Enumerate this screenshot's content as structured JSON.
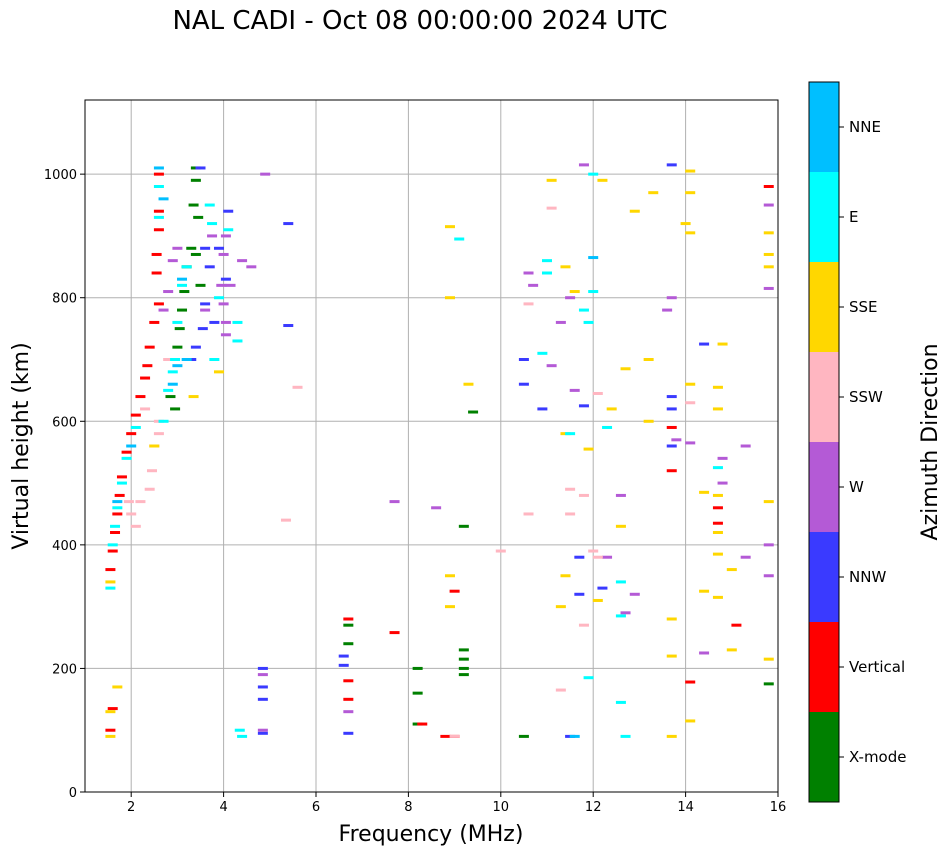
{
  "chart_data": {
    "type": "scatter",
    "title": "NAL CADI - Oct 08 00:00:00 2024 UTC",
    "xlabel": "Frequency (MHz)",
    "ylabel": "Virtual height (km)",
    "xlim": [
      1,
      16
    ],
    "ylim": [
      0,
      1120
    ],
    "xticks": [
      2,
      4,
      6,
      8,
      10,
      12,
      14,
      16
    ],
    "yticks": [
      0,
      200,
      400,
      600,
      800,
      1000
    ],
    "grid": true,
    "colorbar": {
      "label": "Azimuth Direction",
      "categories": [
        "X-mode",
        "Vertical",
        "NNW",
        "W",
        "SSW",
        "SSE",
        "E",
        "NNE"
      ],
      "colors": [
        "#008000",
        "#ff0000",
        "#3a3aff",
        "#b45ad6",
        "#ffb6c1",
        "#ffd700",
        "#00ffff",
        "#00bfff"
      ]
    },
    "series": [
      {
        "category": "X-mode",
        "points": [
          [
            3.4,
            1010
          ],
          [
            3.4,
            990
          ],
          [
            3.35,
            950
          ],
          [
            3.45,
            930
          ],
          [
            3.3,
            880
          ],
          [
            3.2,
            850
          ],
          [
            3.15,
            810
          ],
          [
            3.1,
            780
          ],
          [
            3.05,
            750
          ],
          [
            3.0,
            720
          ],
          [
            2.9,
            700
          ],
          [
            2.85,
            640
          ],
          [
            2.95,
            620
          ],
          [
            3.5,
            820
          ],
          [
            3.4,
            870
          ],
          [
            6.7,
            240
          ],
          [
            6.7,
            270
          ],
          [
            8.2,
            200
          ],
          [
            8.2,
            160
          ],
          [
            8.2,
            110
          ],
          [
            9.2,
            430
          ],
          [
            9.2,
            230
          ],
          [
            9.2,
            215
          ],
          [
            9.2,
            200
          ],
          [
            9.2,
            190
          ],
          [
            9.4,
            615
          ],
          [
            10.5,
            90
          ],
          [
            15.8,
            175
          ]
        ]
      },
      {
        "category": "Vertical",
        "points": [
          [
            2.6,
            1000
          ],
          [
            2.6,
            940
          ],
          [
            2.6,
            910
          ],
          [
            2.55,
            870
          ],
          [
            2.55,
            840
          ],
          [
            2.6,
            790
          ],
          [
            2.5,
            760
          ],
          [
            2.4,
            720
          ],
          [
            2.35,
            690
          ],
          [
            2.3,
            670
          ],
          [
            2.2,
            640
          ],
          [
            2.1,
            610
          ],
          [
            2.0,
            580
          ],
          [
            1.9,
            550
          ],
          [
            1.8,
            510
          ],
          [
            1.75,
            480
          ],
          [
            1.7,
            450
          ],
          [
            1.65,
            420
          ],
          [
            1.6,
            390
          ],
          [
            1.55,
            360
          ],
          [
            1.55,
            100
          ],
          [
            1.6,
            135
          ],
          [
            6.7,
            280
          ],
          [
            6.7,
            180
          ],
          [
            6.7,
            150
          ],
          [
            7.7,
            258
          ],
          [
            8.3,
            110
          ],
          [
            8.8,
            90
          ],
          [
            9.0,
            325
          ],
          [
            9.0,
            90
          ],
          [
            13.7,
            590
          ],
          [
            13.7,
            520
          ],
          [
            14.1,
            178
          ],
          [
            14.7,
            460
          ],
          [
            14.7,
            435
          ],
          [
            15.1,
            270
          ],
          [
            15.8,
            980
          ]
        ]
      },
      {
        "category": "NNW",
        "points": [
          [
            3.5,
            1010
          ],
          [
            3.6,
            880
          ],
          [
            3.7,
            850
          ],
          [
            3.6,
            790
          ],
          [
            3.55,
            750
          ],
          [
            3.4,
            720
          ],
          [
            3.3,
            700
          ],
          [
            3.8,
            760
          ],
          [
            3.9,
            880
          ],
          [
            4.05,
            830
          ],
          [
            4.1,
            940
          ],
          [
            4.85,
            200
          ],
          [
            4.85,
            170
          ],
          [
            4.85,
            150
          ],
          [
            4.85,
            95
          ],
          [
            5.4,
            920
          ],
          [
            5.4,
            755
          ],
          [
            6.6,
            220
          ],
          [
            6.6,
            205
          ],
          [
            6.7,
            95
          ],
          [
            10.5,
            660
          ],
          [
            10.5,
            700
          ],
          [
            10.9,
            620
          ],
          [
            11.5,
            90
          ],
          [
            11.7,
            380
          ],
          [
            11.7,
            320
          ],
          [
            11.8,
            625
          ],
          [
            12.2,
            330
          ],
          [
            13.7,
            640
          ],
          [
            13.7,
            620
          ],
          [
            13.7,
            560
          ],
          [
            13.7,
            1015
          ],
          [
            14.4,
            725
          ]
        ]
      },
      {
        "category": "W",
        "points": [
          [
            3.0,
            880
          ],
          [
            2.9,
            860
          ],
          [
            2.8,
            810
          ],
          [
            2.7,
            780
          ],
          [
            3.6,
            780
          ],
          [
            3.75,
            900
          ],
          [
            3.95,
            820
          ],
          [
            4.0,
            790
          ],
          [
            4.05,
            740
          ],
          [
            4.05,
            760
          ],
          [
            4.0,
            870
          ],
          [
            4.05,
            900
          ],
          [
            4.15,
            820
          ],
          [
            4.4,
            860
          ],
          [
            4.6,
            850
          ],
          [
            4.9,
            1000
          ],
          [
            4.85,
            190
          ],
          [
            4.85,
            100
          ],
          [
            6.7,
            130
          ],
          [
            7.7,
            470
          ],
          [
            8.6,
            460
          ],
          [
            10.6,
            840
          ],
          [
            10.7,
            820
          ],
          [
            11.1,
            690
          ],
          [
            11.3,
            760
          ],
          [
            11.5,
            800
          ],
          [
            11.6,
            650
          ],
          [
            11.8,
            1015
          ],
          [
            12.3,
            380
          ],
          [
            12.6,
            480
          ],
          [
            12.7,
            290
          ],
          [
            12.9,
            320
          ],
          [
            13.6,
            780
          ],
          [
            13.7,
            800
          ],
          [
            13.8,
            570
          ],
          [
            14.1,
            565
          ],
          [
            14.8,
            500
          ],
          [
            14.8,
            540
          ],
          [
            15.3,
            560
          ],
          [
            15.3,
            380
          ],
          [
            15.8,
            400
          ],
          [
            15.8,
            350
          ],
          [
            15.8,
            950
          ],
          [
            15.8,
            815
          ],
          [
            14.4,
            225
          ]
        ]
      },
      {
        "category": "SSW",
        "points": [
          [
            2.6,
            600
          ],
          [
            2.6,
            580
          ],
          [
            2.5,
            560
          ],
          [
            2.45,
            520
          ],
          [
            2.4,
            490
          ],
          [
            2.2,
            470
          ],
          [
            2.1,
            430
          ],
          [
            2.0,
            450
          ],
          [
            1.95,
            470
          ],
          [
            2.3,
            620
          ],
          [
            2.8,
            700
          ],
          [
            5.6,
            655
          ],
          [
            5.35,
            440
          ],
          [
            9.0,
            90
          ],
          [
            10.0,
            390
          ],
          [
            10.6,
            450
          ],
          [
            10.6,
            790
          ],
          [
            11.1,
            945
          ],
          [
            11.5,
            490
          ],
          [
            11.5,
            450
          ],
          [
            11.8,
            270
          ],
          [
            11.8,
            480
          ],
          [
            12.0,
            390
          ],
          [
            12.1,
            380
          ],
          [
            11.3,
            165
          ],
          [
            14.1,
            630
          ],
          [
            12.1,
            645
          ]
        ]
      },
      {
        "category": "SSE",
        "points": [
          [
            1.55,
            340
          ],
          [
            1.7,
            170
          ],
          [
            1.55,
            130
          ],
          [
            1.55,
            90
          ],
          [
            2.5,
            560
          ],
          [
            3.35,
            640
          ],
          [
            3.9,
            680
          ],
          [
            8.9,
            915
          ],
          [
            8.9,
            800
          ],
          [
            9.3,
            660
          ],
          [
            8.9,
            350
          ],
          [
            8.9,
            300
          ],
          [
            11.1,
            990
          ],
          [
            11.4,
            850
          ],
          [
            11.6,
            810
          ],
          [
            11.4,
            580
          ],
          [
            11.3,
            300
          ],
          [
            11.9,
            555
          ],
          [
            12.2,
            990
          ],
          [
            12.4,
            620
          ],
          [
            12.6,
            430
          ],
          [
            12.7,
            685
          ],
          [
            12.9,
            940
          ],
          [
            13.2,
            700
          ],
          [
            13.2,
            600
          ],
          [
            13.3,
            970
          ],
          [
            13.7,
            280
          ],
          [
            13.7,
            220
          ],
          [
            13.7,
            90
          ],
          [
            14.0,
            920
          ],
          [
            14.1,
            1005
          ],
          [
            14.1,
            970
          ],
          [
            14.1,
            905
          ],
          [
            14.1,
            660
          ],
          [
            14.1,
            115
          ],
          [
            14.4,
            485
          ],
          [
            14.4,
            325
          ],
          [
            14.7,
            655
          ],
          [
            14.7,
            620
          ],
          [
            14.7,
            480
          ],
          [
            14.7,
            420
          ],
          [
            14.7,
            385
          ],
          [
            14.7,
            315
          ],
          [
            14.8,
            725
          ],
          [
            15.0,
            360
          ],
          [
            15.0,
            230
          ],
          [
            15.8,
            905
          ],
          [
            15.8,
            870
          ],
          [
            15.8,
            850
          ],
          [
            15.8,
            470
          ],
          [
            15.8,
            215
          ],
          [
            12.1,
            310
          ],
          [
            11.4,
            350
          ]
        ]
      },
      {
        "category": "E",
        "points": [
          [
            3.2,
            850
          ],
          [
            3.1,
            820
          ],
          [
            3.0,
            760
          ],
          [
            2.95,
            700
          ],
          [
            2.9,
            680
          ],
          [
            2.8,
            650
          ],
          [
            2.7,
            600
          ],
          [
            2.1,
            590
          ],
          [
            1.9,
            540
          ],
          [
            1.8,
            500
          ],
          [
            1.7,
            460
          ],
          [
            1.65,
            430
          ],
          [
            1.6,
            400
          ],
          [
            1.55,
            330
          ],
          [
            2.6,
            980
          ],
          [
            2.6,
            930
          ],
          [
            3.7,
            950
          ],
          [
            3.75,
            920
          ],
          [
            3.9,
            800
          ],
          [
            4.1,
            910
          ],
          [
            4.3,
            760
          ],
          [
            4.3,
            730
          ],
          [
            3.8,
            700
          ],
          [
            4.35,
            100
          ],
          [
            4.4,
            90
          ],
          [
            9.1,
            895
          ],
          [
            10.9,
            710
          ],
          [
            11.0,
            860
          ],
          [
            11.5,
            580
          ],
          [
            11.8,
            780
          ],
          [
            11.9,
            760
          ],
          [
            12.0,
            810
          ],
          [
            12.0,
            1000
          ],
          [
            12.3,
            590
          ],
          [
            12.6,
            340
          ],
          [
            12.6,
            145
          ],
          [
            12.6,
            285
          ],
          [
            12.7,
            90
          ],
          [
            14.7,
            525
          ],
          [
            11.9,
            185
          ],
          [
            11.0,
            840
          ]
        ]
      },
      {
        "category": "NNE",
        "points": [
          [
            2.6,
            1010
          ],
          [
            2.7,
            960
          ],
          [
            3.1,
            830
          ],
          [
            3.0,
            690
          ],
          [
            2.9,
            660
          ],
          [
            3.2,
            700
          ],
          [
            1.7,
            470
          ],
          [
            2.0,
            560
          ],
          [
            12.0,
            865
          ],
          [
            11.6,
            90
          ]
        ]
      }
    ]
  }
}
